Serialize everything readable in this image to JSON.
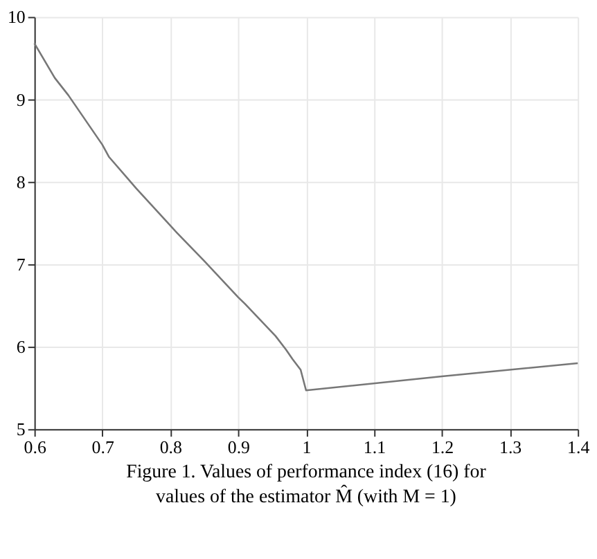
{
  "chart_data": {
    "type": "line",
    "x": [
      0.6,
      0.63,
      0.65,
      0.7,
      0.71,
      0.75,
      0.8,
      0.81,
      0.85,
      0.9,
      0.91,
      0.955,
      0.97,
      0.98,
      0.992,
      1.0,
      1.2,
      1.4
    ],
    "series": [
      {
        "color": "#777777",
        "values": [
          9.68,
          9.26,
          9.05,
          8.45,
          8.3,
          7.92,
          7.47,
          7.38,
          7.04,
          6.6,
          6.52,
          6.13,
          5.97,
          5.85,
          5.72,
          5.47,
          5.64,
          5.8
        ]
      }
    ],
    "xlim": [
      0.6,
      1.4
    ],
    "xticks": [
      0.6,
      0.7,
      0.8,
      0.9,
      1,
      1.1,
      1.2,
      1.3,
      1.4
    ],
    "ylim": [
      5,
      10
    ],
    "yticks": [
      5,
      6,
      7,
      8,
      9,
      10
    ],
    "grid": true,
    "legend": false,
    "marker": "none",
    "line_style": "solid",
    "annotations": [
      "Figure 1.  Values of performance index (16) for values of the estimator M̂ (with M = 1)"
    ]
  }
}
